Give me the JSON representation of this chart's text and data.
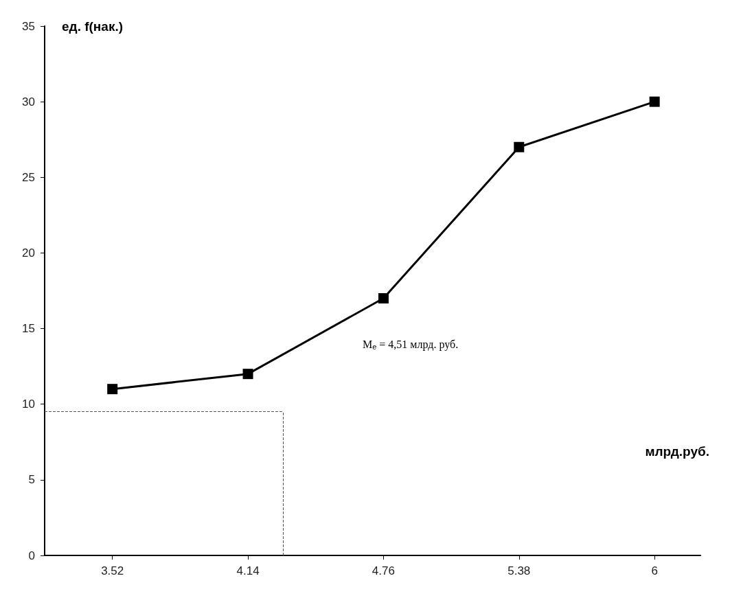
{
  "chart_data": {
    "type": "line",
    "xlabel": "млрд.руб.",
    "ylabel": "ед. f(нак.)",
    "x": [
      3.52,
      4.14,
      4.76,
      5.38,
      6
    ],
    "series": [
      {
        "color": "#000000",
        "values": [
          11,
          12,
          17,
          27,
          30
        ]
      }
    ],
    "xlim": [
      3.21,
      6.21
    ],
    "xticks": [
      3.52,
      4.14,
      4.76,
      5.38,
      6
    ],
    "ylim": [
      0,
      35
    ],
    "yticks": [
      0,
      5,
      10,
      15,
      20,
      25,
      30,
      35
    ],
    "grid": false,
    "marker": "square",
    "line_style": "solid",
    "ref_lines": [
      {
        "axis": "x",
        "value": 4.3,
        "color": "#555555",
        "line_style": "dashed"
      },
      {
        "axis": "y",
        "value": 9.5,
        "color": "#555555",
        "line_style": "dashed"
      }
    ],
    "annotations": [
      "M$_{e}$ = 4,51 млрд. руб."
    ]
  }
}
